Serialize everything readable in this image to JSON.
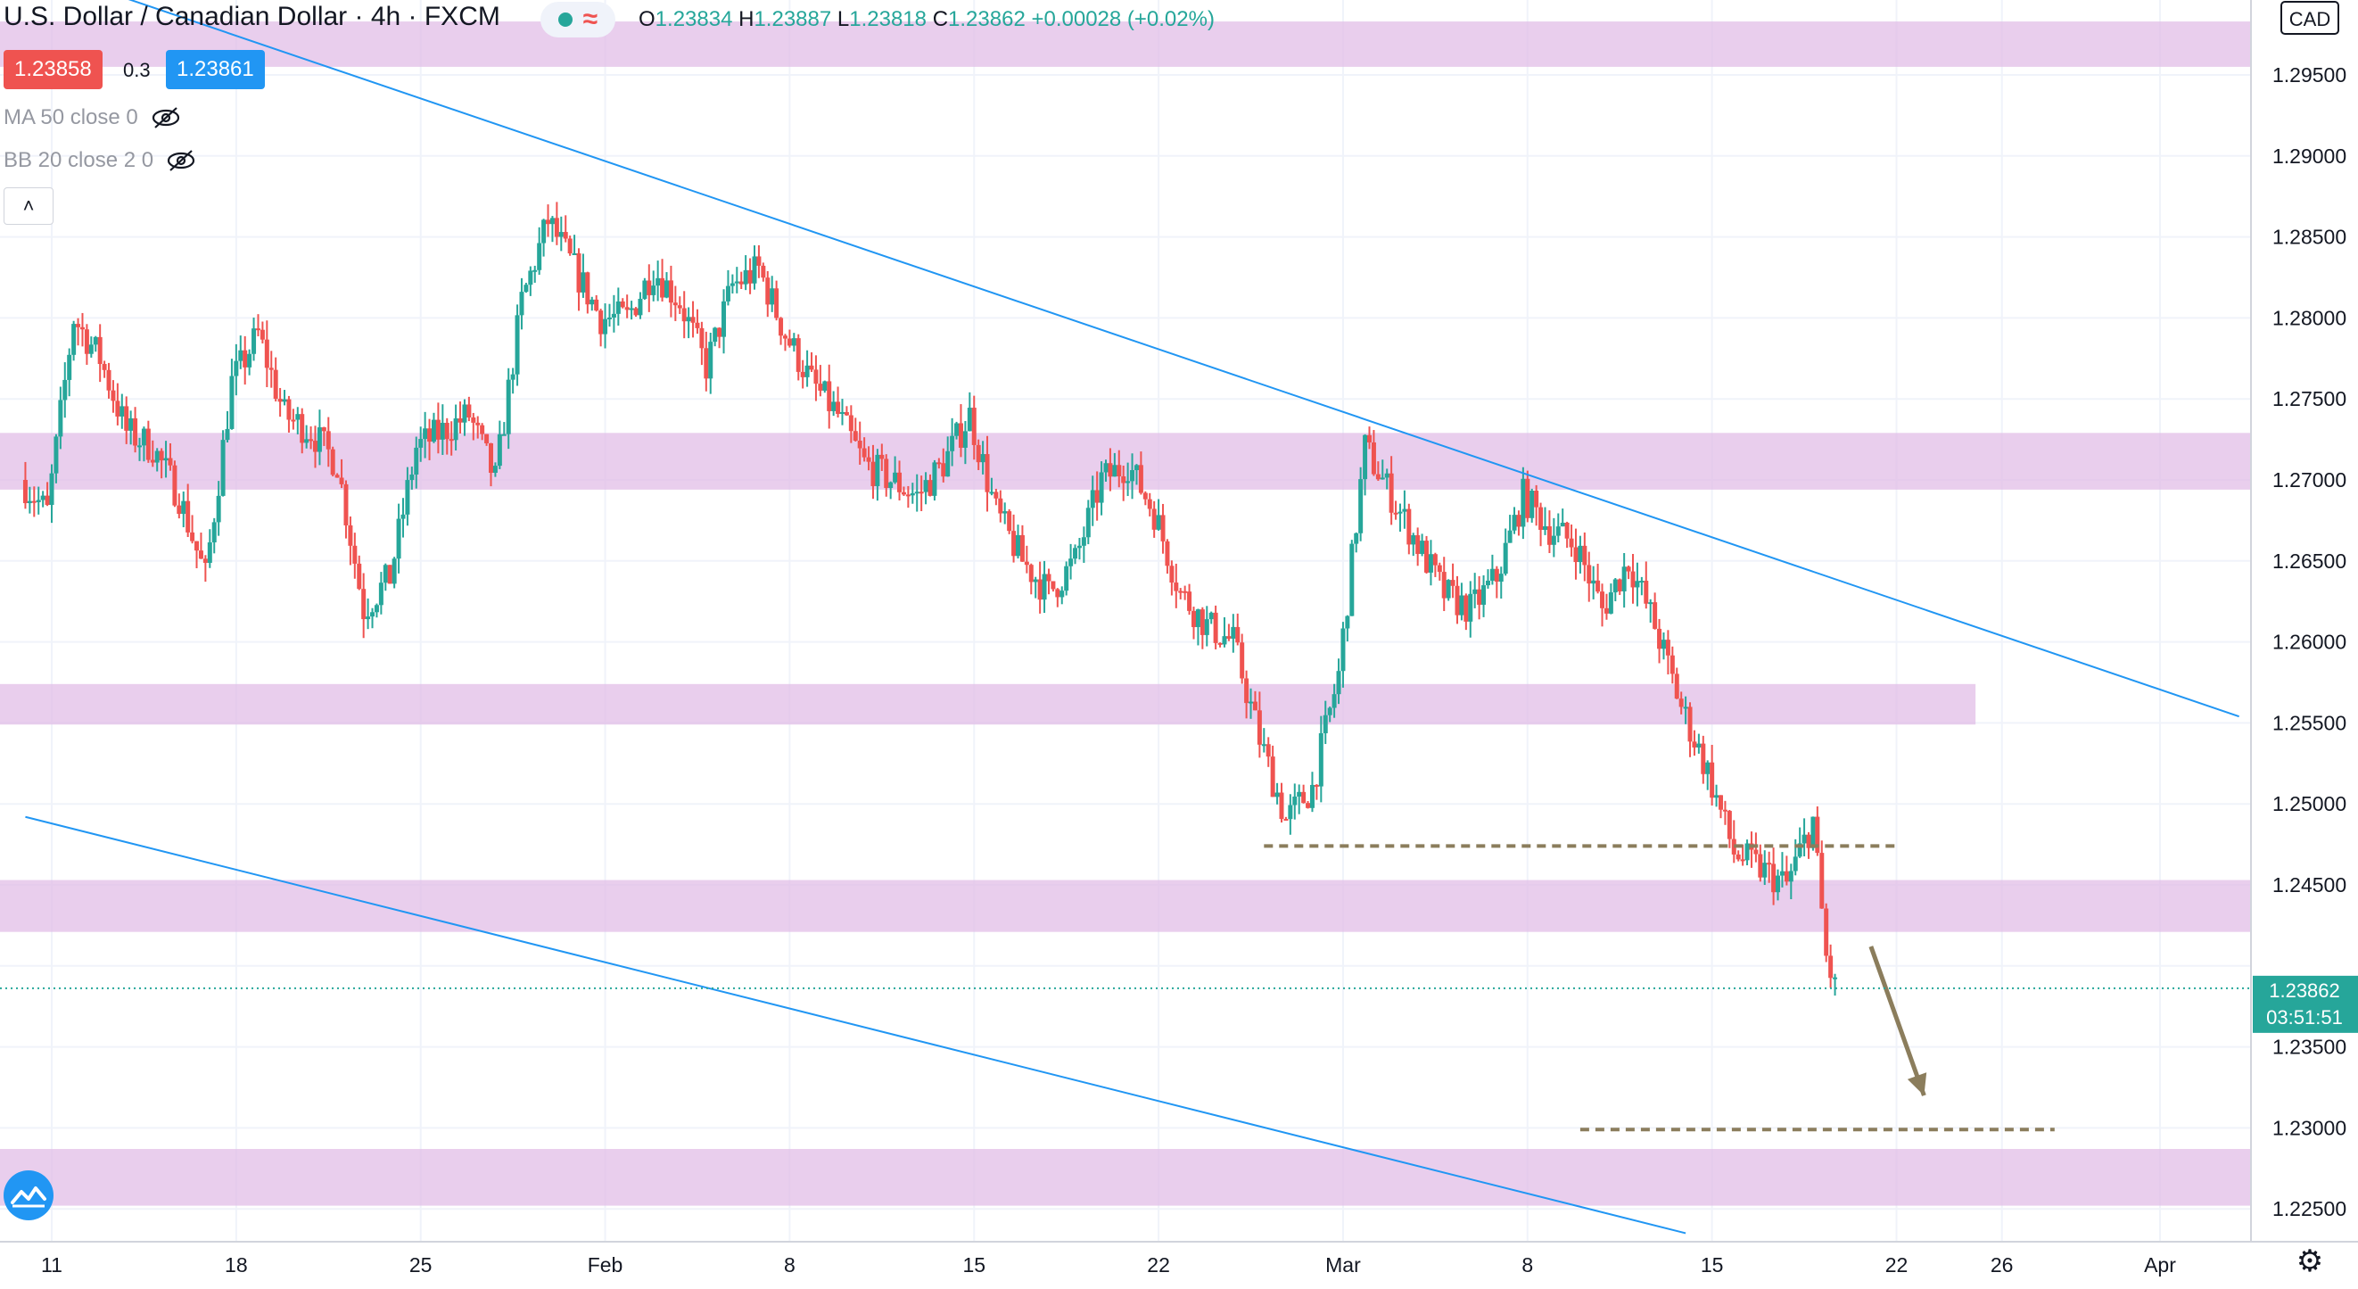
{
  "header": {
    "title": "U.S. Dollar / Canadian Dollar · 4h · FXCM",
    "ohlc": {
      "open_label": "O",
      "open": "1.23834",
      "high_label": "H",
      "high": "1.23887",
      "low_label": "L",
      "low": "1.23818",
      "close_label": "C",
      "close": "1.23862",
      "change": "+0.00028 (+0.02%)"
    },
    "live_icon": "circle-dot-icon",
    "wave_icon": "wave-icon"
  },
  "trade": {
    "sell": "1.23858",
    "spread": "0.3",
    "buy": "1.23861"
  },
  "indicators": [
    {
      "label": "MA 50 close 0",
      "icon": "eye-off-icon"
    },
    {
      "label": "BB 20 close 2 0",
      "icon": "eye-off-icon"
    }
  ],
  "collapse_icon": "chevron-up-icon",
  "price_axis": {
    "currency": "CAD",
    "current_price": "1.23862",
    "countdown": "03:51:51"
  },
  "colors": {
    "up": "#26a69a",
    "down": "#ef5350",
    "zone": "#e1bee7",
    "trendline": "#2196f3",
    "annotation": "#8b7d5c"
  },
  "chart_data": {
    "type": "candlestick",
    "ylim": [
      1.2225,
      1.2995
    ],
    "y_ticks": [
      {
        "value": 1.295,
        "label": "1.29500"
      },
      {
        "value": 1.29,
        "label": "1.29000"
      },
      {
        "value": 1.285,
        "label": "1.28500"
      },
      {
        "value": 1.28,
        "label": "1.28000"
      },
      {
        "value": 1.275,
        "label": "1.27500"
      },
      {
        "value": 1.27,
        "label": "1.27000"
      },
      {
        "value": 1.265,
        "label": "1.26500"
      },
      {
        "value": 1.26,
        "label": "1.26000"
      },
      {
        "value": 1.255,
        "label": "1.25500"
      },
      {
        "value": 1.25,
        "label": "1.25000"
      },
      {
        "value": 1.245,
        "label": "1.24500"
      },
      {
        "value": 1.24,
        "label": "1.24000"
      },
      {
        "value": 1.235,
        "label": "1.23500"
      },
      {
        "value": 1.23,
        "label": "1.23000"
      },
      {
        "value": 1.225,
        "label": "1.22500"
      }
    ],
    "x_ticks": [
      {
        "date": "2021-01-11",
        "label": "11"
      },
      {
        "date": "2021-01-18",
        "label": "18"
      },
      {
        "date": "2021-01-25",
        "label": "25"
      },
      {
        "date": "2021-02-01",
        "label": "Feb"
      },
      {
        "date": "2021-02-08",
        "label": "8"
      },
      {
        "date": "2021-02-15",
        "label": "15"
      },
      {
        "date": "2021-02-22",
        "label": "22"
      },
      {
        "date": "2021-03-01",
        "label": "Mar"
      },
      {
        "date": "2021-03-08",
        "label": "8"
      },
      {
        "date": "2021-03-15",
        "label": "15"
      },
      {
        "date": "2021-03-22",
        "label": "22"
      },
      {
        "date": "2021-03-26",
        "label": "26"
      },
      {
        "date": "2021-04-01",
        "label": "Apr"
      }
    ],
    "zones": [
      {
        "from": 1.2955,
        "to": 1.2983
      },
      {
        "from": 1.2694,
        "to": 1.2729
      },
      {
        "from": 1.2549,
        "to": 1.2574
      },
      {
        "from": 1.2421,
        "to": 1.2453
      },
      {
        "from": 1.2252,
        "to": 1.2287
      }
    ],
    "trendlines": [
      {
        "from": {
          "date": "2021-01-07",
          "price": 1.3035
        },
        "to": {
          "date": "2021-04-04",
          "price": 1.2554
        }
      },
      {
        "from": {
          "date": "2021-01-10",
          "price": 1.2492
        },
        "to": {
          "date": "2021-03-14",
          "price": 1.2235
        }
      }
    ],
    "levels": [
      {
        "price": 1.2474,
        "from": "2021-02-26",
        "to": "2021-03-22",
        "style": "dashed"
      },
      {
        "price": 1.2299,
        "from": "2021-03-10",
        "to": "2021-03-28",
        "style": "dashed"
      }
    ],
    "arrow": {
      "from": {
        "date": "2021-03-19",
        "price": 1.2412
      },
      "to": {
        "date": "2021-03-20",
        "price": 1.232
      }
    },
    "last_price": 1.23862,
    "anchors": [
      {
        "date": "2021-01-10",
        "close": 1.27
      },
      {
        "date": "2021-01-11",
        "close": 1.268
      },
      {
        "date": "2021-01-12",
        "close": 1.28
      },
      {
        "date": "2021-01-13",
        "close": 1.2775
      },
      {
        "date": "2021-01-14",
        "close": 1.273
      },
      {
        "date": "2021-01-15",
        "close": 1.272
      },
      {
        "date": "2021-01-16",
        "close": 1.269
      },
      {
        "date": "2021-01-17",
        "close": 1.264
      },
      {
        "date": "2021-01-18",
        "close": 1.276
      },
      {
        "date": "2021-01-19",
        "close": 1.279
      },
      {
        "date": "2021-01-20",
        "close": 1.274
      },
      {
        "date": "2021-01-21",
        "close": 1.273
      },
      {
        "date": "2021-01-22",
        "close": 1.271
      },
      {
        "date": "2021-01-23",
        "close": 1.262
      },
      {
        "date": "2021-01-24",
        "close": 1.264
      },
      {
        "date": "2021-01-25",
        "close": 1.272
      },
      {
        "date": "2021-01-26",
        "close": 1.273
      },
      {
        "date": "2021-01-27",
        "close": 1.274
      },
      {
        "date": "2021-01-28",
        "close": 1.27
      },
      {
        "date": "2021-01-29",
        "close": 1.281
      },
      {
        "date": "2021-01-30",
        "close": 1.286
      },
      {
        "date": "2021-01-31",
        "close": 1.283
      },
      {
        "date": "2021-02-01",
        "close": 1.28
      },
      {
        "date": "2021-02-02",
        "close": 1.28
      },
      {
        "date": "2021-02-03",
        "close": 1.283
      },
      {
        "date": "2021-02-04",
        "close": 1.281
      },
      {
        "date": "2021-02-05",
        "close": 1.277
      },
      {
        "date": "2021-02-06",
        "close": 1.282
      },
      {
        "date": "2021-02-07",
        "close": 1.283
      },
      {
        "date": "2021-02-08",
        "close": 1.279
      },
      {
        "date": "2021-02-09",
        "close": 1.276
      },
      {
        "date": "2021-02-10",
        "close": 1.274
      },
      {
        "date": "2021-02-11",
        "close": 1.271
      },
      {
        "date": "2021-02-12",
        "close": 1.27
      },
      {
        "date": "2021-02-13",
        "close": 1.269
      },
      {
        "date": "2021-02-14",
        "close": 1.271
      },
      {
        "date": "2021-02-15",
        "close": 1.274
      },
      {
        "date": "2021-02-16",
        "close": 1.268
      },
      {
        "date": "2021-02-17",
        "close": 1.265
      },
      {
        "date": "2021-02-18",
        "close": 1.263
      },
      {
        "date": "2021-02-19",
        "close": 1.265
      },
      {
        "date": "2021-02-20",
        "close": 1.27
      },
      {
        "date": "2021-02-21",
        "close": 1.271
      },
      {
        "date": "2021-02-22",
        "close": 1.268
      },
      {
        "date": "2021-02-23",
        "close": 1.263
      },
      {
        "date": "2021-02-24",
        "close": 1.261
      },
      {
        "date": "2021-02-25",
        "close": 1.26
      },
      {
        "date": "2021-02-26",
        "close": 1.254
      },
      {
        "date": "2021-02-27",
        "close": 1.249
      },
      {
        "date": "2021-02-28",
        "close": 1.251
      },
      {
        "date": "2021-03-01",
        "close": 1.258
      },
      {
        "date": "2021-03-02",
        "close": 1.272
      },
      {
        "date": "2021-03-03",
        "close": 1.269
      },
      {
        "date": "2021-03-04",
        "close": 1.266
      },
      {
        "date": "2021-03-05",
        "close": 1.263
      },
      {
        "date": "2021-03-06",
        "close": 1.262
      },
      {
        "date": "2021-03-07",
        "close": 1.264
      },
      {
        "date": "2021-03-08",
        "close": 1.269
      },
      {
        "date": "2021-03-09",
        "close": 1.267
      },
      {
        "date": "2021-03-10",
        "close": 1.266
      },
      {
        "date": "2021-03-11",
        "close": 1.262
      },
      {
        "date": "2021-03-12",
        "close": 1.265
      },
      {
        "date": "2021-03-13",
        "close": 1.261
      },
      {
        "date": "2021-03-14",
        "close": 1.256
      },
      {
        "date": "2021-03-15",
        "close": 1.252
      },
      {
        "date": "2021-03-16",
        "close": 1.247
      },
      {
        "date": "2021-03-17",
        "close": 1.246
      },
      {
        "date": "2021-03-18",
        "close": 1.245
      },
      {
        "date": "2021-03-19",
        "close": 1.249
      },
      {
        "date": "2021-03-19T12:00",
        "close": 1.2405
      },
      {
        "date": "2021-03-19T20:00",
        "close": 1.2386
      }
    ]
  }
}
